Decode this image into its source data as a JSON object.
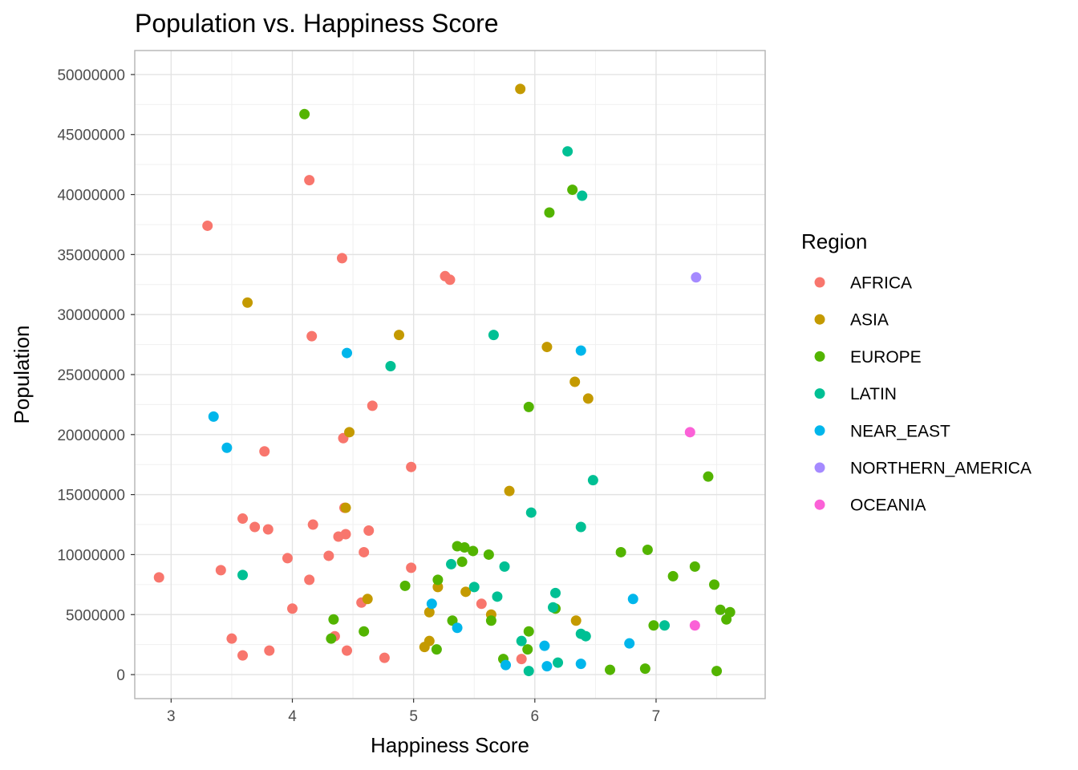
{
  "chart_data": {
    "type": "scatter",
    "title": "Population vs. Happiness Score",
    "xlabel": "Happiness Score",
    "ylabel": "Population",
    "xlim": [
      2.7,
      7.9
    ],
    "ylim": [
      -2000000,
      52000000
    ],
    "xticks": [
      3,
      4,
      5,
      6,
      7
    ],
    "yticks": [
      0,
      5000000,
      10000000,
      15000000,
      20000000,
      25000000,
      30000000,
      35000000,
      40000000,
      45000000,
      50000000
    ],
    "grid": true,
    "legend": {
      "title": "Region",
      "position": "right"
    },
    "series": [
      {
        "name": "AFRICA",
        "color": "#F8766D",
        "points": [
          [
            2.9,
            8100000
          ],
          [
            3.3,
            37400000
          ],
          [
            3.41,
            8700000
          ],
          [
            3.5,
            3000000
          ],
          [
            3.59,
            1600000
          ],
          [
            3.59,
            13000000
          ],
          [
            3.69,
            12300000
          ],
          [
            3.77,
            18600000
          ],
          [
            3.8,
            12100000
          ],
          [
            3.81,
            2000000
          ],
          [
            3.96,
            9700000
          ],
          [
            4.0,
            5500000
          ],
          [
            4.14,
            41200000
          ],
          [
            4.14,
            7900000
          ],
          [
            4.16,
            28200000
          ],
          [
            4.17,
            12500000
          ],
          [
            4.3,
            9900000
          ],
          [
            4.35,
            3200000
          ],
          [
            4.38,
            11500000
          ],
          [
            4.41,
            34700000
          ],
          [
            4.42,
            19700000
          ],
          [
            4.43,
            13900000
          ],
          [
            4.44,
            11700000
          ],
          [
            4.45,
            2000000
          ],
          [
            4.57,
            6000000
          ],
          [
            4.59,
            10200000
          ],
          [
            4.63,
            12000000
          ],
          [
            4.66,
            22400000
          ],
          [
            4.76,
            1400000
          ],
          [
            4.98,
            8900000
          ],
          [
            4.98,
            17300000
          ],
          [
            5.26,
            33200000
          ],
          [
            5.3,
            32900000
          ],
          [
            5.56,
            5900000
          ],
          [
            5.89,
            1300000
          ]
        ]
      },
      {
        "name": "ASIA",
        "color": "#C49A00",
        "points": [
          [
            3.63,
            31000000
          ],
          [
            4.44,
            13900000
          ],
          [
            4.47,
            20200000
          ],
          [
            4.62,
            6300000
          ],
          [
            4.88,
            28300000
          ],
          [
            5.09,
            2300000
          ],
          [
            5.13,
            2800000
          ],
          [
            5.13,
            5200000
          ],
          [
            5.2,
            7300000
          ],
          [
            5.43,
            6900000
          ],
          [
            5.64,
            5000000
          ],
          [
            5.79,
            15300000
          ],
          [
            5.88,
            48800000
          ],
          [
            6.1,
            27300000
          ],
          [
            6.33,
            24400000
          ],
          [
            6.34,
            4500000
          ],
          [
            6.44,
            23000000
          ]
        ]
      },
      {
        "name": "EUROPE",
        "color": "#53B400",
        "points": [
          [
            4.1,
            46700000
          ],
          [
            4.32,
            3000000
          ],
          [
            4.34,
            4600000
          ],
          [
            4.59,
            3600000
          ],
          [
            4.93,
            7400000
          ],
          [
            5.19,
            2100000
          ],
          [
            5.2,
            7900000
          ],
          [
            5.32,
            4500000
          ],
          [
            5.36,
            10700000
          ],
          [
            5.4,
            9400000
          ],
          [
            5.42,
            10600000
          ],
          [
            5.49,
            10300000
          ],
          [
            5.62,
            10000000
          ],
          [
            5.64,
            4500000
          ],
          [
            5.74,
            1300000
          ],
          [
            5.94,
            2100000
          ],
          [
            5.95,
            22300000
          ],
          [
            5.95,
            3600000
          ],
          [
            6.12,
            38500000
          ],
          [
            6.17,
            5500000
          ],
          [
            6.31,
            40400000
          ],
          [
            6.62,
            400000
          ],
          [
            6.71,
            10200000
          ],
          [
            6.91,
            500000
          ],
          [
            6.93,
            10400000
          ],
          [
            6.98,
            4100000
          ],
          [
            7.14,
            8200000
          ],
          [
            7.32,
            9000000
          ],
          [
            7.43,
            16500000
          ],
          [
            7.48,
            7500000
          ],
          [
            7.5,
            300000
          ],
          [
            7.53,
            5400000
          ],
          [
            7.58,
            4600000
          ],
          [
            7.61,
            5200000
          ]
        ]
      },
      {
        "name": "LATIN",
        "color": "#00C094",
        "points": [
          [
            3.59,
            8300000
          ],
          [
            4.81,
            25700000
          ],
          [
            5.31,
            9200000
          ],
          [
            5.5,
            7300000
          ],
          [
            5.66,
            28300000
          ],
          [
            5.69,
            6500000
          ],
          [
            5.75,
            9000000
          ],
          [
            5.89,
            2800000
          ],
          [
            5.95,
            300000
          ],
          [
            5.97,
            13500000
          ],
          [
            6.15,
            5600000
          ],
          [
            6.17,
            6800000
          ],
          [
            6.19,
            1000000
          ],
          [
            6.27,
            43600000
          ],
          [
            6.38,
            3400000
          ],
          [
            6.38,
            12300000
          ],
          [
            6.39,
            39900000
          ],
          [
            6.42,
            3200000
          ],
          [
            6.48,
            16200000
          ],
          [
            7.07,
            4100000
          ]
        ]
      },
      {
        "name": "NEAR_EAST",
        "color": "#00B6EB",
        "points": [
          [
            3.35,
            21500000
          ],
          [
            3.46,
            18900000
          ],
          [
            4.45,
            26800000
          ],
          [
            5.15,
            5900000
          ],
          [
            5.36,
            3900000
          ],
          [
            5.76,
            800000
          ],
          [
            6.08,
            2400000
          ],
          [
            6.1,
            700000
          ],
          [
            6.38,
            27000000
          ],
          [
            6.38,
            900000
          ],
          [
            6.78,
            2600000
          ],
          [
            6.81,
            6300000
          ]
        ]
      },
      {
        "name": "NORTHERN_AMERICA",
        "color": "#A58AFF",
        "points": [
          [
            7.33,
            33100000
          ]
        ]
      },
      {
        "name": "OCEANIA",
        "color": "#FB61D7",
        "points": [
          [
            7.28,
            20200000
          ],
          [
            7.32,
            4100000
          ]
        ]
      }
    ]
  }
}
